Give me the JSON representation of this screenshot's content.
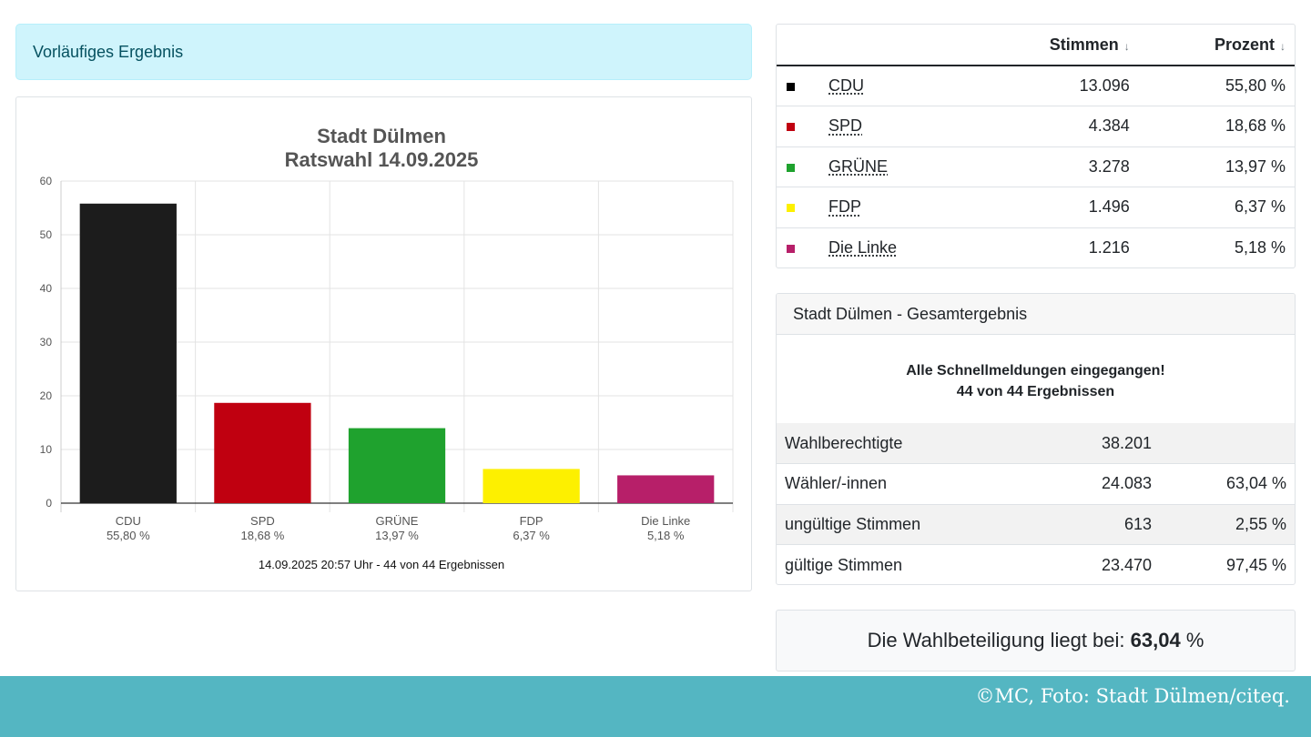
{
  "alert": {
    "text": "Vorläufiges Ergebnis"
  },
  "chart_data": {
    "type": "bar",
    "title": "Stadt Dülmen",
    "subtitle": "Ratswahl 14.09.2025",
    "categories": [
      "CDU",
      "SPD",
      "GRÜNE",
      "FDP",
      "Die Linke"
    ],
    "category_sublabels": [
      "55,80 %",
      "18,68 %",
      "13,97 %",
      "6,37 %",
      "5,18 %"
    ],
    "values": [
      55.8,
      18.68,
      13.97,
      6.37,
      5.18
    ],
    "colors": [
      "#1c1c1c",
      "#c00010",
      "#1fa22e",
      "#fdf000",
      "#b71f69"
    ],
    "ylim": [
      0,
      60
    ],
    "yticks": [
      "0",
      "10",
      "20",
      "30",
      "40",
      "50",
      "60"
    ],
    "grid": true,
    "xlabel": "",
    "ylabel": "",
    "footer": "14.09.2025 20:57 Uhr - 44 von 44 Ergebnissen"
  },
  "results_table": {
    "headers": {
      "stimmen": "Stimmen",
      "prozent": "Prozent",
      "sort_icon": "↓"
    },
    "rows": [
      {
        "party": "CDU",
        "color": "#000000",
        "stimmen": "13.096",
        "prozent": "55,80 %"
      },
      {
        "party": "SPD",
        "color": "#c00010",
        "stimmen": "4.384",
        "prozent": "18,68 %"
      },
      {
        "party": "GRÜNE",
        "color": "#1fa22e",
        "stimmen": "3.278",
        "prozent": "13,97 %"
      },
      {
        "party": "FDP",
        "color": "#fdf000",
        "stimmen": "1.496",
        "prozent": "6,37 %"
      },
      {
        "party": "Die Linke",
        "color": "#b71f69",
        "stimmen": "1.216",
        "prozent": "5,18 %"
      }
    ]
  },
  "summary": {
    "header": "Stadt Dülmen - Gesamtergebnis",
    "notice_line1": "Alle Schnellmeldungen eingegangen!",
    "notice_line2": "44 von 44 Ergebnissen",
    "rows": [
      {
        "label": "Wahlberechtigte",
        "value": "38.201",
        "percent": ""
      },
      {
        "label": "Wähler/-innen",
        "value": "24.083",
        "percent": "63,04 %"
      },
      {
        "label": "ungültige Stimmen",
        "value": "613",
        "percent": "2,55 %"
      },
      {
        "label": "gültige Stimmen",
        "value": "23.470",
        "percent": "97,45 %"
      }
    ]
  },
  "turnout": {
    "prefix": "Die Wahlbeteiligung liegt bei:",
    "value": "63,04",
    "unit": "%"
  },
  "footer": {
    "credit": "©MC, Foto: Stadt Dülmen/citeq."
  }
}
